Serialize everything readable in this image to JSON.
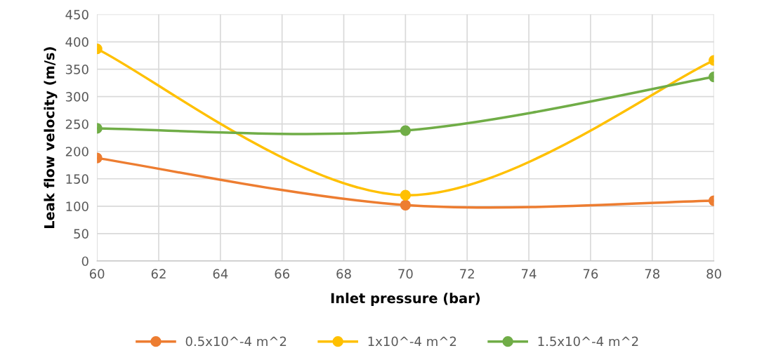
{
  "chart_data": {
    "type": "line",
    "xlabel": "Inlet pressure (bar)",
    "ylabel": "Leak flow velocity (m/s)",
    "x": [
      60,
      70,
      80
    ],
    "series": [
      {
        "name": "0.5x10^-4 m^2",
        "color": "#ed7d31",
        "values": [
          188,
          102,
          110
        ]
      },
      {
        "name": "1x10^-4 m^2",
        "color": "#ffc000",
        "values": [
          387,
          120,
          366
        ]
      },
      {
        "name": "1.5x10^-4 m^2",
        "color": "#70ad47",
        "values": [
          242,
          238,
          336
        ]
      }
    ],
    "xlim": [
      60,
      80
    ],
    "xticks": [
      60,
      62,
      64,
      66,
      68,
      70,
      72,
      74,
      76,
      78,
      80
    ],
    "ylim": [
      0,
      450
    ],
    "yticks": [
      0,
      50,
      100,
      150,
      200,
      250,
      300,
      350,
      400,
      450
    ],
    "grid": true,
    "legend": "bottom",
    "marker": "circle",
    "line_style": "solid"
  }
}
